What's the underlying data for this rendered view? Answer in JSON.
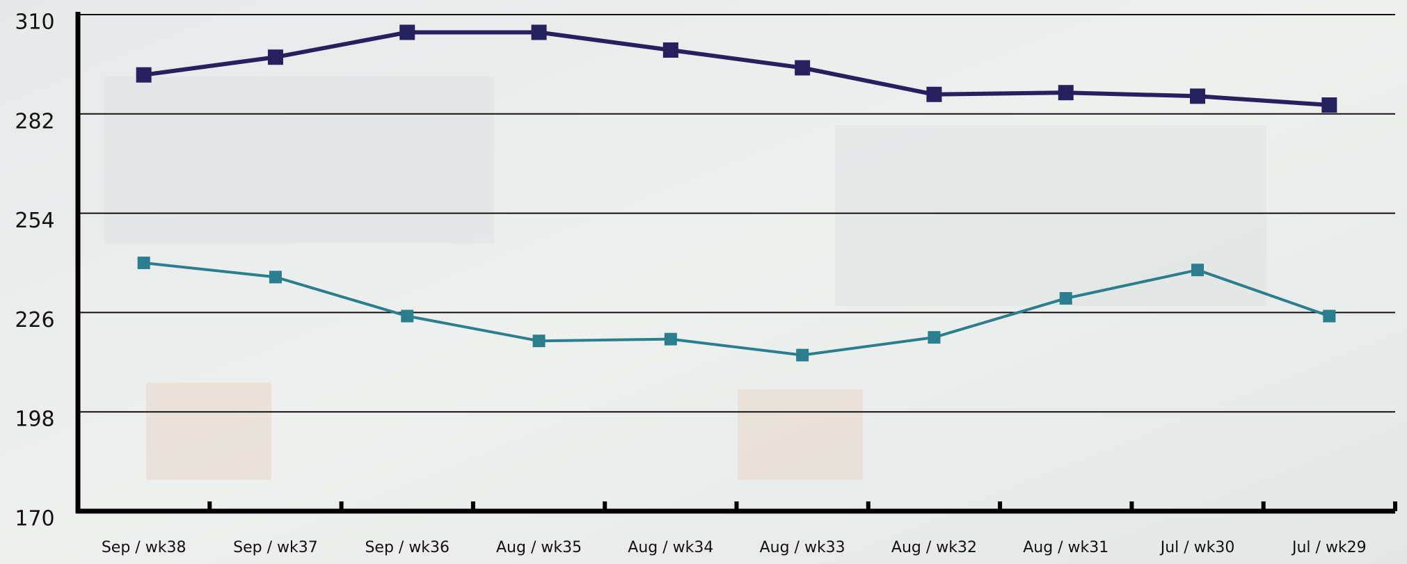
{
  "chart_data": {
    "type": "line",
    "categories": [
      "Sep / wk38",
      "Sep / wk37",
      "Sep / wk36",
      "Aug / wk35",
      "Aug / wk34",
      "Aug / wk33",
      "Aug / wk32",
      "Aug / wk31",
      "Jul / wk30",
      "Jul / wk29"
    ],
    "series": [
      {
        "color": "#25215f",
        "values": [
          293,
          298,
          305,
          305,
          300,
          295,
          287.5,
          288,
          287,
          284.5
        ]
      },
      {
        "color": "#2b7e8e",
        "values": [
          240,
          236,
          225,
          218,
          218.5,
          214,
          219,
          230,
          238,
          225
        ]
      }
    ],
    "ylim": [
      170,
      310
    ],
    "yticks": [
      170,
      198,
      226,
      254,
      282,
      310
    ],
    "grid": true
  }
}
